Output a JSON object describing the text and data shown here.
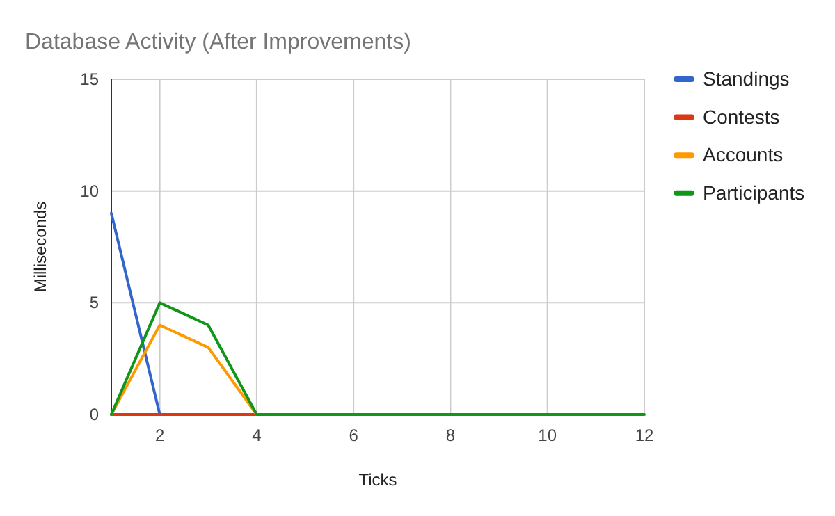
{
  "chart_data": {
    "type": "line",
    "title": "Database Activity (After Improvements)",
    "xlabel": "Ticks",
    "ylabel": "Milliseconds",
    "x": [
      1,
      2,
      3,
      4,
      5,
      6,
      7,
      8,
      9,
      10,
      11,
      12
    ],
    "xlim": [
      1,
      12
    ],
    "xticks": [
      {
        "value": 1,
        "label": null
      },
      2,
      4,
      6,
      8,
      10,
      12
    ],
    "ylim": [
      0,
      15
    ],
    "yticks": [
      0,
      5,
      10,
      15
    ],
    "grid": true,
    "legend": "right",
    "marker": "none",
    "line_style": "solid",
    "series": [
      {
        "name": "Standings",
        "color": "#3366cc",
        "values": [
          9,
          0,
          null,
          null,
          null,
          null,
          null,
          null,
          null,
          null,
          null,
          null
        ]
      },
      {
        "name": "Contests",
        "color": "#dc3912",
        "values": [
          0,
          0,
          0,
          0,
          null,
          null,
          null,
          null,
          null,
          null,
          null,
          null
        ]
      },
      {
        "name": "Accounts",
        "color": "#ff9900",
        "values": [
          0,
          4,
          3,
          0,
          null,
          null,
          null,
          null,
          null,
          null,
          null,
          null
        ]
      },
      {
        "name": "Participants",
        "color": "#109618",
        "values": [
          0,
          5,
          4,
          0,
          0,
          0,
          0,
          0,
          0,
          0,
          0,
          0
        ]
      }
    ]
  }
}
